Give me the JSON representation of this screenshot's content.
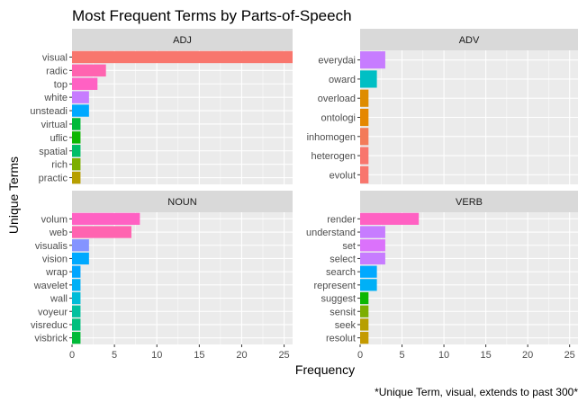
{
  "chart_data": {
    "type": "bar",
    "orientation": "horizontal",
    "title": "Most Frequent Terms by Parts-of-Speech",
    "xlabel": "Frequency",
    "ylabel": "Unique Terms",
    "caption": "*Unique Term, visual, extends to past 300*",
    "xlim": [
      0,
      26
    ],
    "x_ticks": [
      0,
      5,
      10,
      15,
      20,
      25
    ],
    "grid": true,
    "legend": "none",
    "facets": [
      {
        "name": "ADJ",
        "terms": [
          "visual",
          "radic",
          "top",
          "white",
          "unsteadi",
          "virtual",
          "uflic",
          "spatial",
          "rich",
          "practic"
        ],
        "values": [
          300,
          4,
          3,
          2,
          2,
          1,
          1,
          1,
          1,
          1
        ],
        "colors": [
          "#F8766D",
          "#FF64B0",
          "#FF61C3",
          "#C77CFF",
          "#00A9FF",
          "#00BA38",
          "#0CB702",
          "#00BE67",
          "#7CAE00",
          "#B79F00"
        ]
      },
      {
        "name": "ADV",
        "terms": [
          "everydai",
          "oward",
          "overload",
          "ontologi",
          "inhomogen",
          "heterogen",
          "evolut"
        ],
        "values": [
          3,
          2,
          1,
          1,
          1,
          1,
          1
        ],
        "colors": [
          "#C77CFF",
          "#00BFC4",
          "#DE8C00",
          "#E58700",
          "#F37B59",
          "#F8766D",
          "#F8766D"
        ]
      },
      {
        "name": "NOUN",
        "terms": [
          "volum",
          "web",
          "visualis",
          "vision",
          "wrap",
          "wavelet",
          "wall",
          "voyeur",
          "visreduc",
          "visbrick"
        ],
        "values": [
          8,
          7,
          2,
          2,
          1,
          1,
          1,
          1,
          1,
          1
        ],
        "colors": [
          "#FF61C3",
          "#FF64B0",
          "#8494FF",
          "#00A9FF",
          "#00A5FF",
          "#00B0F6",
          "#00BCD8",
          "#00C19F",
          "#00BF7D",
          "#00BA38"
        ]
      },
      {
        "name": "VERB",
        "terms": [
          "render",
          "understand",
          "set",
          "select",
          "search",
          "represent",
          "suggest",
          "sensit",
          "seek",
          "resolut"
        ],
        "values": [
          7,
          3,
          3,
          3,
          2,
          2,
          1,
          1,
          1,
          1
        ],
        "colors": [
          "#FF61C3",
          "#C77CFF",
          "#DB72FB",
          "#C77CFF",
          "#00A9FF",
          "#00B0F6",
          "#0CB702",
          "#7CAE00",
          "#B79F00",
          "#C49A00"
        ]
      }
    ]
  }
}
